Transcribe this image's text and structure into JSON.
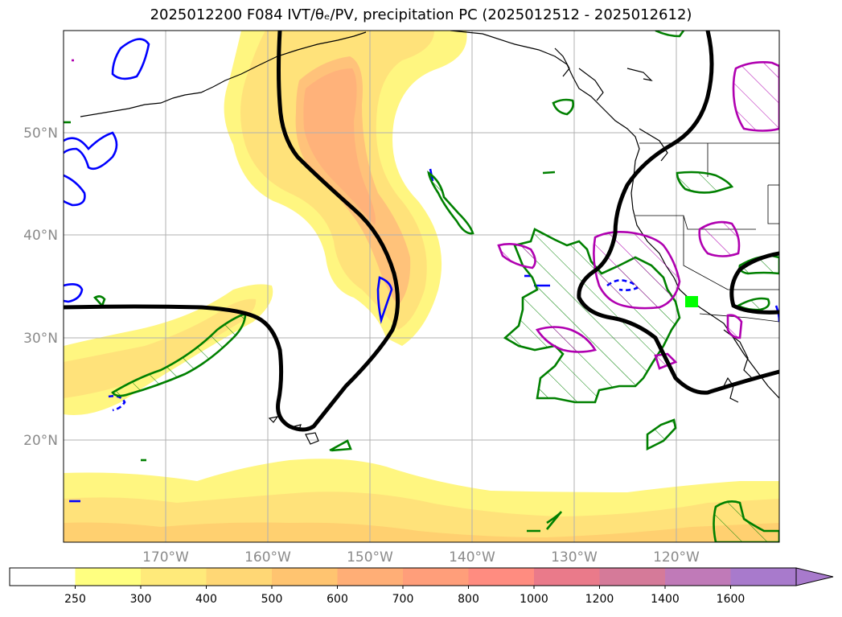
{
  "title": "2025012200 F084 IVT/θₑ/PV, precipitation PC (2025012512 - 2025012612)",
  "map": {
    "projection": "PlateCarree",
    "extent": {
      "lon_min": -180,
      "lon_max": -110,
      "lat_min": 10,
      "lat_max": 60
    },
    "latitude_labels": [
      "50°N",
      "40°N",
      "30°N",
      "20°N"
    ],
    "longitude_labels": [
      "170°W",
      "160°W",
      "150°W",
      "140°W",
      "130°W",
      "120°W"
    ],
    "gridlines": true,
    "marker": {
      "color": "#00ff00",
      "lon": -120.5,
      "lat": 33.5
    }
  },
  "colorbar": {
    "extend": "max",
    "tick_labels": [
      "250",
      "300",
      "400",
      "500",
      "600",
      "700",
      "800",
      "1000",
      "1200",
      "1400",
      "1600"
    ],
    "colors": [
      "#ffffff",
      "#ffff80",
      "#ffea7a",
      "#ffd775",
      "#ffc470",
      "#ffae76",
      "#ff9e7a",
      "#ff8c80",
      "#ea7a8a",
      "#d57a99",
      "#c07ab8",
      "#a87acc"
    ]
  },
  "legend_colors": {
    "ivt_fill": "#ffe680",
    "ivt_core": "#ffb87a",
    "theta_e_line": "#000000",
    "pv_positive": "#0000ff",
    "precip_green": "#008000",
    "precip_magenta": "#b000b0",
    "coastline": "#000000"
  }
}
